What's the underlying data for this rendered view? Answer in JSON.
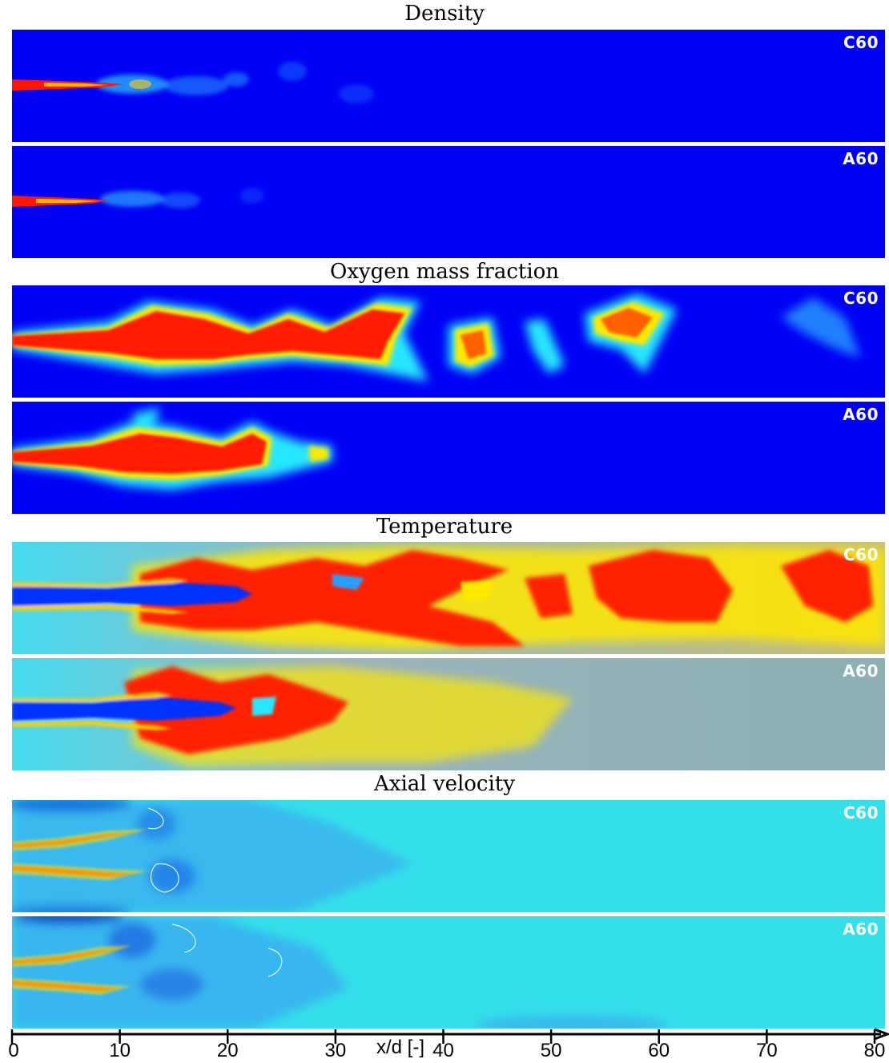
{
  "panels": [
    {
      "title": "Density",
      "cases": [
        {
          "label": "C60",
          "colormap": "density"
        },
        {
          "label": "A60",
          "colormap": "density"
        }
      ]
    },
    {
      "title": "Oxygen mass fraction",
      "cases": [
        {
          "label": "C60",
          "colormap": "oxygen"
        },
        {
          "label": "A60",
          "colormap": "oxygen"
        }
      ]
    },
    {
      "title": "Temperature",
      "cases": [
        {
          "label": "C60",
          "colormap": "temperature"
        },
        {
          "label": "A60",
          "colormap": "temperature"
        }
      ]
    },
    {
      "title": "Axial velocity",
      "cases": [
        {
          "label": "C60",
          "colormap": "velocity"
        },
        {
          "label": "A60",
          "colormap": "velocity"
        }
      ]
    }
  ],
  "x_axis": {
    "label": "x/d [-]",
    "ticks": [
      "0",
      "10",
      "20",
      "30",
      "40",
      "50",
      "60",
      "70",
      "80"
    ]
  },
  "colors": {
    "density_bg": "#0000f5",
    "oxygen_bg": "#0000f5",
    "temperature_bg": "#7fb9c4",
    "velocity_bg": "#33e0ea",
    "hot": "#ff1a00",
    "warm": "#ffe800",
    "cool": "#28e7ff",
    "separator": "#ffffff"
  }
}
